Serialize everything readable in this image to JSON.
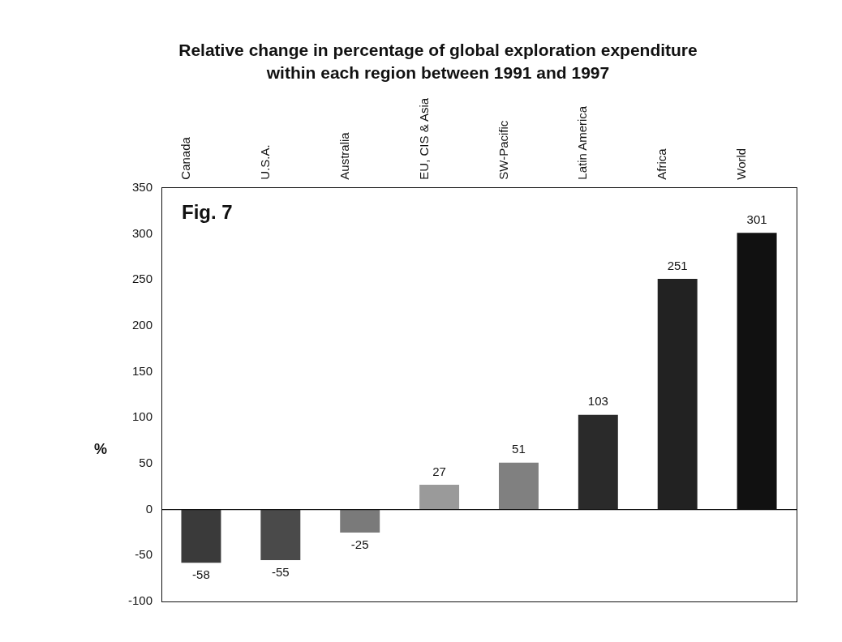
{
  "chart_data": {
    "type": "bar",
    "title": "Relative change in percentage of global exploration expenditure within each region between 1991 and 1997",
    "categories": [
      "Canada",
      "U.S.A.",
      "Australia",
      "EU, CIS & Asia",
      "SW-Pacific",
      "Latin America",
      "Africa",
      "World"
    ],
    "values": [
      -58,
      -55,
      -25,
      27,
      51,
      103,
      251,
      301
    ],
    "colors": [
      "#3a3a3a",
      "#4a4a4a",
      "#7a7a7a",
      "#9a9a9a",
      "#808080",
      "#2a2a2a",
      "#222222",
      "#111111"
    ],
    "ylabel": "%",
    "ylim": [
      -100,
      350
    ],
    "yticks": [
      -100,
      -50,
      0,
      50,
      100,
      150,
      200,
      250,
      300,
      350
    ],
    "ref_lines": [
      {
        "axis": "y",
        "value": 0,
        "color": "#111111"
      }
    ],
    "data_labels": true,
    "grid": false,
    "legend": false,
    "annotations": [
      "Fig. 7"
    ]
  }
}
